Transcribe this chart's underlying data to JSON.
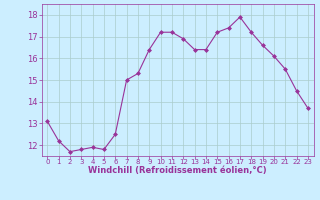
{
  "x": [
    0,
    1,
    2,
    3,
    4,
    5,
    6,
    7,
    8,
    9,
    10,
    11,
    12,
    13,
    14,
    15,
    16,
    17,
    18,
    19,
    20,
    21,
    22,
    23
  ],
  "y": [
    13.1,
    12.2,
    11.7,
    11.8,
    11.9,
    11.8,
    12.5,
    15.0,
    15.3,
    16.4,
    17.2,
    17.2,
    16.9,
    16.4,
    16.4,
    17.2,
    17.4,
    17.9,
    17.2,
    16.6,
    16.1,
    15.5,
    14.5,
    13.7
  ],
  "line_color": "#993399",
  "marker": "D",
  "marker_size": 2,
  "bg_color": "#cceeff",
  "grid_color": "#aacccc",
  "xlabel": "Windchill (Refroidissement éolien,°C)",
  "xlabel_color": "#993399",
  "tick_color": "#993399",
  "axis_color": "#993399",
  "ylim": [
    11.5,
    18.5
  ],
  "xlim": [
    -0.5,
    23.5
  ],
  "yticks": [
    12,
    13,
    14,
    15,
    16,
    17,
    18
  ],
  "xticks": [
    0,
    1,
    2,
    3,
    4,
    5,
    6,
    7,
    8,
    9,
    10,
    11,
    12,
    13,
    14,
    15,
    16,
    17,
    18,
    19,
    20,
    21,
    22,
    23
  ],
  "ytick_fontsize": 6,
  "xtick_fontsize": 5,
  "xlabel_fontsize": 6
}
